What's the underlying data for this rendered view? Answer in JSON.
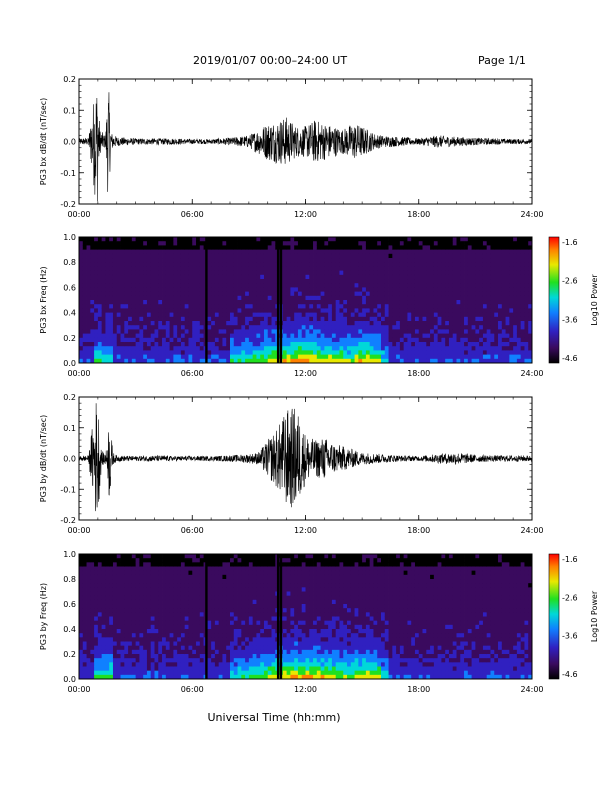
{
  "header": {
    "title": "2019/01/07  00:00–24:00 UT",
    "page": "Page 1/1"
  },
  "xlabel": "Universal Time (hh:mm)",
  "chart_data": [
    {
      "type": "line",
      "ylabel": "PG3 bx dB/dt (nT/sec)",
      "ylim": [
        -0.2,
        0.2
      ],
      "yticks": [
        "0.2",
        "0.1",
        "0.0",
        "-0.1",
        "-0.2"
      ],
      "xticks": [
        "00:00",
        "06:00",
        "12:00",
        "18:00",
        "24:00"
      ],
      "xlim_hours": [
        0,
        24
      ],
      "envelope": {
        "hours": [
          0,
          0.5,
          0.9,
          1.0,
          1.1,
          1.4,
          1.55,
          1.7,
          2.0,
          3,
          4,
          5,
          6,
          7,
          8,
          9,
          9.5,
          10,
          10.5,
          11,
          11.5,
          12,
          12.5,
          13,
          13.5,
          14,
          14.5,
          15,
          15.5,
          16,
          17,
          18,
          19,
          20,
          21,
          22,
          23,
          24
        ],
        "amplitude": [
          0.01,
          0.012,
          0.2,
          0.2,
          0.04,
          0.02,
          0.2,
          0.03,
          0.015,
          0.01,
          0.01,
          0.01,
          0.008,
          0.008,
          0.012,
          0.02,
          0.04,
          0.06,
          0.07,
          0.08,
          0.05,
          0.05,
          0.07,
          0.06,
          0.05,
          0.04,
          0.06,
          0.05,
          0.03,
          0.02,
          0.015,
          0.01,
          0.02,
          0.015,
          0.012,
          0.01,
          0.008,
          0.008
        ]
      }
    },
    {
      "type": "heatmap",
      "ylabel": "PG3 bx Freq (Hz)",
      "ylim": [
        0,
        1
      ],
      "yticks": [
        "1.0",
        "0.8",
        "0.6",
        "0.4",
        "0.2",
        "0.0"
      ],
      "xticks": [
        "00:00",
        "06:00",
        "12:00",
        "18:00",
        "24:00"
      ],
      "colorbar": {
        "label": "Log10 Power",
        "ticks": [
          "-1.6",
          "-2.6",
          "-3.6",
          "-4.6"
        ]
      },
      "gaps_hours": [
        6.75,
        10.55,
        10.7
      ]
    },
    {
      "type": "line",
      "ylabel": "PG3 by dB/dt (nT/sec)",
      "ylim": [
        -0.2,
        0.2
      ],
      "yticks": [
        "0.2",
        "0.1",
        "0.0",
        "-0.1",
        "-0.2"
      ],
      "xticks": [
        "00:00",
        "06:00",
        "12:00",
        "18:00",
        "24:00"
      ],
      "xlim_hours": [
        0,
        24
      ],
      "envelope": {
        "hours": [
          0,
          0.5,
          0.8,
          0.9,
          1.0,
          1.2,
          1.5,
          1.6,
          1.8,
          2.0,
          3,
          4,
          5,
          6,
          7,
          8,
          9,
          9.5,
          10,
          10.5,
          11,
          11.5,
          12,
          12.5,
          13,
          13.5,
          14,
          14.5,
          15,
          16,
          17,
          18,
          19,
          20,
          21,
          22,
          23,
          24
        ],
        "amplitude": [
          0.008,
          0.01,
          0.15,
          0.2,
          0.19,
          0.02,
          0.03,
          0.15,
          0.02,
          0.01,
          0.008,
          0.01,
          0.008,
          0.008,
          0.008,
          0.01,
          0.015,
          0.02,
          0.06,
          0.1,
          0.16,
          0.17,
          0.08,
          0.06,
          0.07,
          0.05,
          0.04,
          0.03,
          0.02,
          0.015,
          0.01,
          0.008,
          0.015,
          0.02,
          0.012,
          0.01,
          0.01,
          0.01
        ]
      }
    },
    {
      "type": "heatmap",
      "ylabel": "PG3 by Freq (Hz)",
      "ylim": [
        0,
        1
      ],
      "yticks": [
        "1.0",
        "0.8",
        "0.6",
        "0.4",
        "0.2",
        "0.0"
      ],
      "xticks": [
        "00:00",
        "06:00",
        "12:00",
        "18:00",
        "24:00"
      ],
      "colorbar": {
        "label": "Log10 Power",
        "ticks": [
          "-1.6",
          "-2.6",
          "-3.6",
          "-4.6"
        ]
      },
      "gaps_hours": [
        6.75,
        10.55,
        10.7
      ]
    }
  ]
}
